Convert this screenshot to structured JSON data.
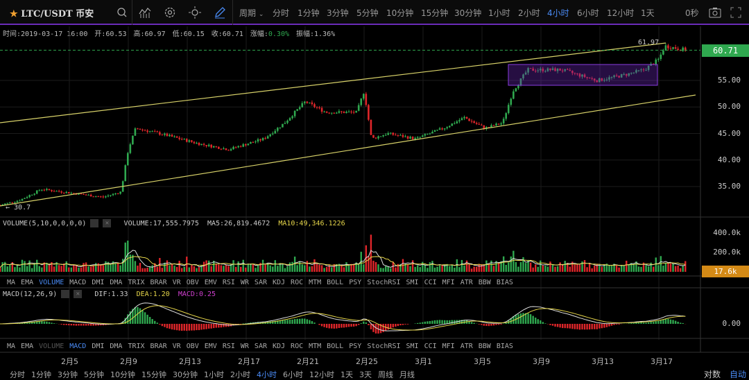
{
  "topbar": {
    "symbol": "LTC/USDT 币安",
    "period_label": "周期",
    "periods": [
      "分时",
      "1分钟",
      "3分钟",
      "5分钟",
      "10分钟",
      "15分钟",
      "30分钟",
      "1小时",
      "2小时",
      "4小时",
      "6小时",
      "12小时",
      "1天"
    ],
    "active_period": "4小时",
    "countdown": "0秒",
    "icons": [
      "star-icon",
      "search-icon",
      "indicator-icon",
      "gear-icon",
      "theme-icon",
      "pen-icon",
      "camera-icon",
      "fullscreen-icon"
    ]
  },
  "info": {
    "time": "时间:2019-03-17 16:00",
    "open": "开:60.53",
    "high": "高:60.97",
    "low": "低:60.15",
    "close": "收:60.71",
    "change_label": "涨幅:",
    "change": "0.30%",
    "amp": "振幅:1.36%"
  },
  "price_axis": {
    "labels": [
      "55.00",
      "50.00",
      "45.00",
      "40.00",
      "35.00"
    ],
    "last": "60.71",
    "high_mark": "61.97",
    "low_mark": "← 30.7"
  },
  "volume": {
    "title": "VOLUME(5,10,0,0,0,0)",
    "vol": "VOLUME:17,555.7975",
    "ma5": "MA5:26,819.4672",
    "ma10": "MA10:49,346.1226",
    "axis": [
      "400.0k",
      "200.0k"
    ],
    "last": "17.6k"
  },
  "macd": {
    "title": "MACD(12,26,9)",
    "dif": "DIF:1.33",
    "dea": "DEA:1.20",
    "macd": "MACD:0.25",
    "axis": "0.00"
  },
  "indicator_tabs": [
    "MA",
    "EMA",
    "VOLUME",
    "MACD",
    "DMI",
    "DMA",
    "TRIX",
    "BRAR",
    "VR",
    "OBV",
    "EMV",
    "RSI",
    "WR",
    "SAR",
    "KDJ",
    "ROC",
    "MTM",
    "BOLL",
    "PSY",
    "StochRSI",
    "SMI",
    "CCI",
    "MFI",
    "ATR",
    "BBW",
    "BIAS"
  ],
  "dates": [
    "2月5",
    "2月9",
    "2月13",
    "2月17",
    "2月21",
    "2月25",
    "3月1",
    "3月5",
    "3月9",
    "3月13",
    "3月17"
  ],
  "bottom_periods": [
    "分时",
    "1分钟",
    "3分钟",
    "5分钟",
    "10分钟",
    "15分钟",
    "30分钟",
    "1小时",
    "2小时",
    "4小时",
    "6小时",
    "12小时",
    "1天",
    "3天",
    "周线",
    "月线"
  ],
  "bottom_right": {
    "log": "对数",
    "auto": "自动"
  },
  "colors": {
    "up": "#2fa84f",
    "down": "#e0262a",
    "accent": "#4a8bf5",
    "purple": "#6a2bb8",
    "trend": "#d9d36a"
  },
  "chart_data": {
    "type": "candlestick",
    "candle_period": "4h",
    "waypoints_day_price": [
      [
        -4.7,
        31.5
      ],
      [
        -3.3,
        32.5
      ],
      [
        -1.9,
        34.5
      ],
      [
        2.3,
        33
      ],
      [
        3.5,
        34
      ],
      [
        4,
        42
      ],
      [
        4.5,
        46
      ],
      [
        6.1,
        45
      ],
      [
        8.9,
        43
      ],
      [
        10.8,
        42
      ],
      [
        13.2,
        44
      ],
      [
        14.6,
        47
      ],
      [
        16,
        51
      ],
      [
        17.4,
        49
      ],
      [
        19.5,
        49
      ],
      [
        20,
        53
      ],
      [
        20.5,
        44
      ],
      [
        21.6,
        45
      ],
      [
        23.5,
        44
      ],
      [
        25.4,
        46
      ],
      [
        26.8,
        48
      ],
      [
        28.2,
        46
      ],
      [
        29.4,
        47
      ],
      [
        30.1,
        53
      ],
      [
        31.1,
        57
      ],
      [
        33.4,
        57
      ],
      [
        35.8,
        55
      ],
      [
        37.6,
        56
      ],
      [
        39,
        57
      ],
      [
        40,
        59
      ],
      [
        40.4,
        61.5
      ],
      [
        41.9,
        60.7
      ]
    ]
  }
}
